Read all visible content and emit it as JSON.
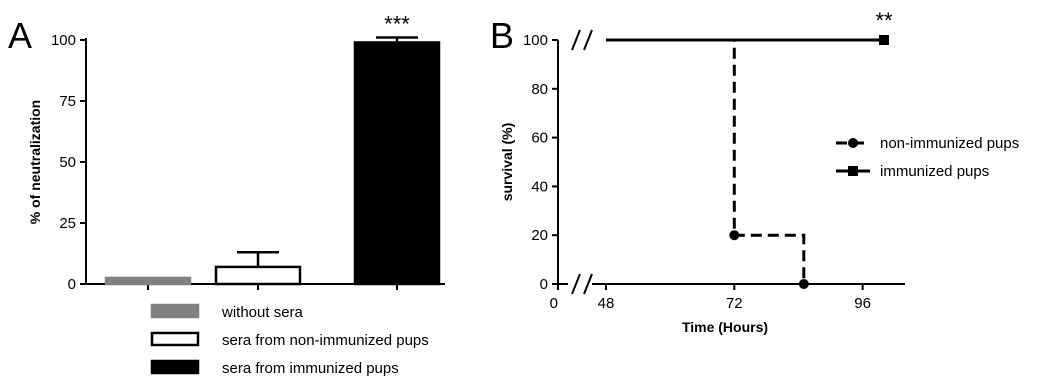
{
  "chart_data": [
    {
      "panel": "A",
      "type": "bar",
      "ylabel": "% of neutralization",
      "ylim": [
        0,
        100
      ],
      "yticks": [
        0,
        25,
        50,
        75,
        100
      ],
      "categories": [
        "without sera",
        "sera from non-immunized pups",
        "sera from immunized pups"
      ],
      "values": [
        2.5,
        7,
        99
      ],
      "error": [
        0,
        6,
        2
      ],
      "colors": [
        "#808080",
        "#ffffff",
        "#000000"
      ],
      "significance": [
        "",
        "",
        "***"
      ],
      "legend": [
        "without sera",
        "sera from non-immunized pups",
        "sera from immunized pups"
      ],
      "legend_position": "bottom"
    },
    {
      "panel": "B",
      "type": "line",
      "xlabel": "Time (Hours)",
      "ylabel": "survival (%)",
      "ylim": [
        0,
        100
      ],
      "yticks": [
        0,
        20,
        40,
        60,
        80,
        100
      ],
      "xticks": [
        "0",
        "48",
        "72",
        "96"
      ],
      "axis_break": true,
      "series": [
        {
          "name": "non-immunized pups",
          "style": "dashed",
          "marker": "circle",
          "x": [
            48,
            72,
            72,
            85,
            85
          ],
          "y": [
            100,
            100,
            20,
            20,
            0
          ],
          "markers": [
            [
              72,
              20
            ],
            [
              85,
              0
            ]
          ]
        },
        {
          "name": "immunized pups",
          "style": "solid",
          "marker": "square",
          "x": [
            48,
            100
          ],
          "y": [
            100,
            100
          ],
          "markers": [
            [
              100,
              100
            ]
          ],
          "significance": "**"
        }
      ],
      "legend_position": "right"
    }
  ]
}
